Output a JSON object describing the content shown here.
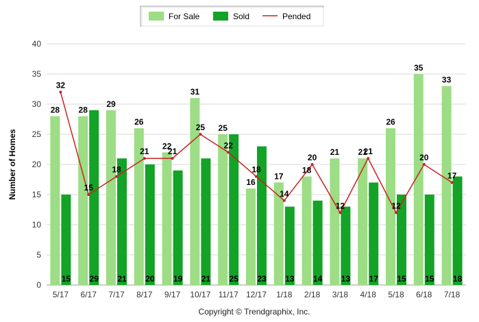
{
  "chart_data": {
    "type": "bar",
    "categories": [
      "5/17",
      "6/17",
      "7/17",
      "8/17",
      "9/17",
      "10/17",
      "11/17",
      "12/17",
      "1/18",
      "2/18",
      "3/18",
      "4/18",
      "5/18",
      "6/18",
      "7/18"
    ],
    "series": [
      {
        "name": "For Sale",
        "type": "bar",
        "color": "#9ddd85",
        "values": [
          28,
          28,
          29,
          26,
          22,
          31,
          25,
          16,
          17,
          18,
          21,
          21,
          26,
          35,
          33
        ]
      },
      {
        "name": "Sold",
        "type": "bar",
        "color": "#13a326",
        "values": [
          15,
          29,
          21,
          20,
          19,
          21,
          25,
          23,
          13,
          14,
          13,
          17,
          15,
          15,
          18
        ]
      },
      {
        "name": "Pended",
        "type": "line",
        "color": "#cc1f1f",
        "values": [
          32,
          15,
          18,
          21,
          21,
          25,
          22,
          18,
          14,
          20,
          12,
          21,
          12,
          20,
          17
        ]
      }
    ],
    "xlabel": "",
    "ylabel": "Number of Homes",
    "ylim": [
      0,
      40
    ],
    "yticks": [
      "0",
      "5",
      "10",
      "15",
      "20",
      "25",
      "30",
      "35",
      "40"
    ],
    "grid": true,
    "legend_position": "top-center"
  },
  "footer": {
    "copyright": "Copyright © Trendgraphix, Inc."
  }
}
